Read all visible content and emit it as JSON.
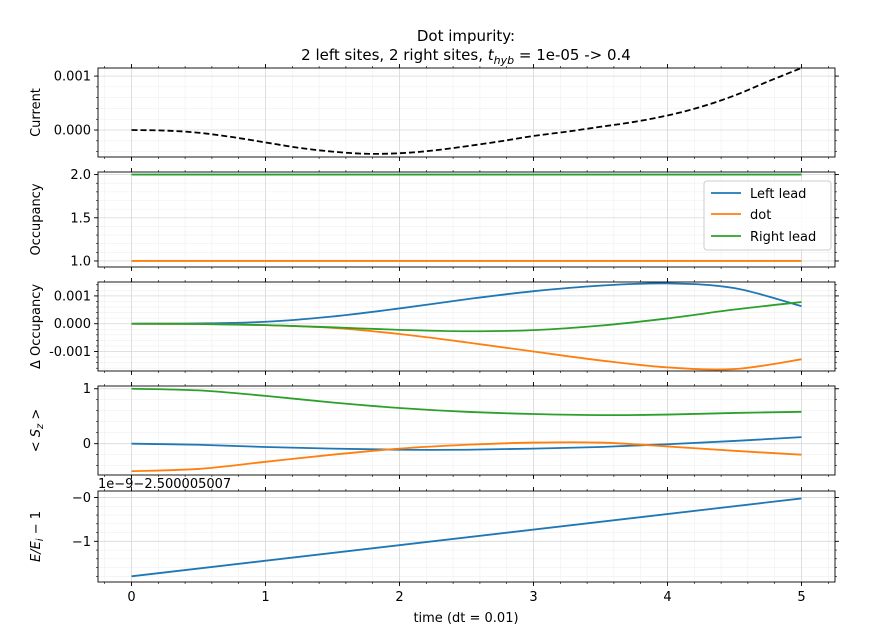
{
  "title_line1": "Dot impurity:",
  "title_line2_pre": "2 left sites, 2 right sites, ",
  "title_line2_sym": "t",
  "title_line2_sub": "hyb",
  "title_line2_post": " = 1e-05 -> 0.4",
  "xlabel": "time (dt = 0.01)",
  "colors": {
    "left": "#1f77b4",
    "dot": "#ff7f0e",
    "right": "#2ca02c",
    "current": "#000000",
    "grid": "#d9d9d9",
    "grid_minor": "#efefef"
  },
  "legend": {
    "placement": "upper-right",
    "entries": [
      "Left lead",
      "dot",
      "Right lead"
    ]
  },
  "chart_data": [
    {
      "type": "line",
      "ylabel": "Current",
      "xlim": [
        -0.25,
        5.25
      ],
      "ylim": [
        -0.0005,
        0.00115
      ],
      "xticks": [
        0,
        1,
        2,
        3,
        4,
        5
      ],
      "yticks": [
        0,
        0.001
      ],
      "ytick_labels": [
        "0.000",
        "0.001"
      ],
      "grid": true,
      "series": [
        {
          "key": "current",
          "style": "dashed",
          "x": [
            0,
            0.25,
            0.5,
            0.75,
            1.0,
            1.25,
            1.5,
            1.75,
            2.0,
            2.25,
            2.5,
            2.75,
            3.0,
            3.25,
            3.5,
            3.75,
            4.0,
            4.25,
            4.5,
            4.75,
            5.0
          ],
          "y": [
            0,
            -1e-05,
            -5e-05,
            -0.00013,
            -0.00023,
            -0.00033,
            -0.0004,
            -0.00044,
            -0.00043,
            -0.00038,
            -0.0003,
            -0.00021,
            -0.00011,
            -3e-05,
            6e-05,
            0.00015,
            0.00027,
            0.00043,
            0.00064,
            0.0009,
            0.00115
          ]
        }
      ]
    },
    {
      "type": "line",
      "ylabel": "Occupancy",
      "xlim": [
        -0.25,
        5.25
      ],
      "ylim": [
        0.93,
        2.03
      ],
      "xticks": [
        0,
        1,
        2,
        3,
        4,
        5
      ],
      "yticks": [
        1.0,
        1.5,
        2.0
      ],
      "ytick_labels": [
        "1.0",
        "1.5",
        "2.0"
      ],
      "grid": true,
      "legend": true,
      "series": [
        {
          "key": "left",
          "name": "Left lead",
          "x": [
            0,
            5
          ],
          "y": [
            2.0,
            2.0
          ]
        },
        {
          "key": "dot",
          "name": "dot",
          "x": [
            0,
            5
          ],
          "y": [
            1.0,
            1.0
          ]
        },
        {
          "key": "right",
          "name": "Right lead",
          "x": [
            0,
            5
          ],
          "y": [
            2.0,
            2.0
          ]
        }
      ]
    },
    {
      "type": "line",
      "ylabel": "Δ Occupancy",
      "xlim": [
        -0.25,
        5.25
      ],
      "ylim": [
        -0.0017,
        0.0015
      ],
      "xticks": [
        0,
        1,
        2,
        3,
        4,
        5
      ],
      "yticks": [
        -0.001,
        0,
        0.001
      ],
      "ytick_labels": [
        "-0.001",
        "0.000",
        "0.001"
      ],
      "grid": true,
      "series": [
        {
          "key": "left",
          "name": "Left lead",
          "x": [
            0,
            0.5,
            1.0,
            1.5,
            2.0,
            2.5,
            3.0,
            3.5,
            4.0,
            4.5,
            5.0
          ],
          "y": [
            0,
            1e-05,
            7e-05,
            0.00026,
            0.00055,
            0.00088,
            0.00117,
            0.00137,
            0.00145,
            0.00128,
            0.00063
          ]
        },
        {
          "key": "dot",
          "name": "dot",
          "x": [
            0,
            0.5,
            1.0,
            1.5,
            2.0,
            2.5,
            3.0,
            3.5,
            4.0,
            4.5,
            5.0
          ],
          "y": [
            0,
            -1e-05,
            -5e-05,
            -0.00015,
            -0.00037,
            -0.00067,
            -0.001,
            -0.00132,
            -0.00157,
            -0.00163,
            -0.00128
          ]
        },
        {
          "key": "right",
          "name": "Right lead",
          "x": [
            0,
            0.5,
            1.0,
            1.5,
            2.0,
            2.5,
            3.0,
            3.5,
            4.0,
            4.5,
            5.0
          ],
          "y": [
            0,
            -1e-05,
            -5e-05,
            -0.00013,
            -0.00022,
            -0.00027,
            -0.00023,
            -7e-05,
            0.00019,
            0.00051,
            0.00078
          ]
        }
      ]
    },
    {
      "type": "line",
      "ylabel": "< S_z >",
      "xlim": [
        -0.25,
        5.25
      ],
      "ylim": [
        -0.57,
        1.05
      ],
      "xticks": [
        0,
        1,
        2,
        3,
        4,
        5
      ],
      "yticks": [
        0,
        1
      ],
      "ytick_labels": [
        "0",
        "1"
      ],
      "grid": true,
      "series": [
        {
          "key": "left",
          "name": "Left lead",
          "x": [
            0,
            0.5,
            1.0,
            1.5,
            2.0,
            2.5,
            3.0,
            3.5,
            4.0,
            4.5,
            5.0
          ],
          "y": [
            0,
            -0.02,
            -0.06,
            -0.09,
            -0.11,
            -0.11,
            -0.09,
            -0.06,
            -0.01,
            0.05,
            0.12
          ]
        },
        {
          "key": "dot",
          "name": "dot",
          "x": [
            0,
            0.5,
            1.0,
            1.5,
            2.0,
            2.5,
            3.0,
            3.5,
            4.0,
            4.5,
            5.0
          ],
          "y": [
            -0.5,
            -0.46,
            -0.33,
            -0.2,
            -0.09,
            -0.02,
            0.02,
            0.02,
            -0.05,
            -0.13,
            -0.2
          ]
        },
        {
          "key": "right",
          "name": "Right lead",
          "x": [
            0,
            0.5,
            1.0,
            1.5,
            2.0,
            2.5,
            3.0,
            3.5,
            4.0,
            4.5,
            5.0
          ],
          "y": [
            1.0,
            0.97,
            0.87,
            0.75,
            0.65,
            0.58,
            0.54,
            0.52,
            0.53,
            0.56,
            0.58
          ]
        }
      ]
    },
    {
      "type": "line",
      "ylabel": "E/E_i − 1",
      "offset_text": "1e−9−2.500005007",
      "xlim": [
        -0.25,
        5.25
      ],
      "ylim": [
        -1.93,
        0.15
      ],
      "xticks": [
        0,
        1,
        2,
        3,
        4,
        5
      ],
      "xtick_labels": [
        "0",
        "1",
        "2",
        "3",
        "4",
        "5"
      ],
      "yticks": [
        -1,
        0
      ],
      "ytick_labels": [
        "−1",
        "−0"
      ],
      "grid": true,
      "series": [
        {
          "key": "left",
          "name": "E",
          "x": [
            0,
            5
          ],
          "y": [
            -1.8,
            -0.02
          ]
        }
      ]
    }
  ]
}
